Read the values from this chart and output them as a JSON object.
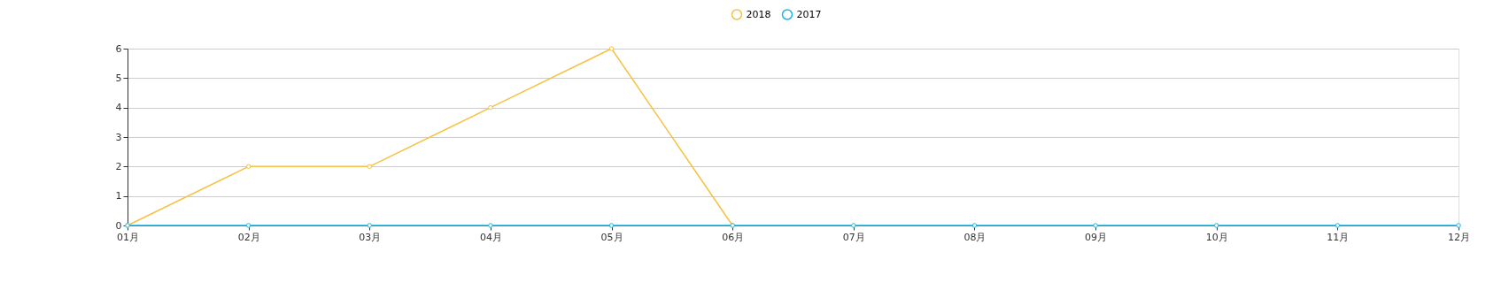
{
  "chart_data": {
    "type": "line",
    "categories": [
      "01月",
      "02月",
      "03月",
      "04月",
      "05月",
      "06月",
      "07月",
      "08月",
      "09月",
      "10月",
      "11月",
      "12月"
    ],
    "series": [
      {
        "name": "2018",
        "color": "#f6c243",
        "values": [
          0,
          2,
          2,
          4,
          6,
          0,
          null,
          null,
          null,
          null,
          null,
          null
        ]
      },
      {
        "name": "2017",
        "color": "#1ab7ea",
        "values": [
          0,
          0,
          0,
          0,
          0,
          0,
          0,
          0,
          0,
          0,
          0,
          0
        ]
      }
    ],
    "ylim": [
      0,
      6
    ],
    "yticks": [
      0,
      1,
      2,
      3,
      4,
      5,
      6
    ],
    "grid": "y",
    "legend": "top",
    "marker": "circle",
    "line_style": "solid"
  }
}
